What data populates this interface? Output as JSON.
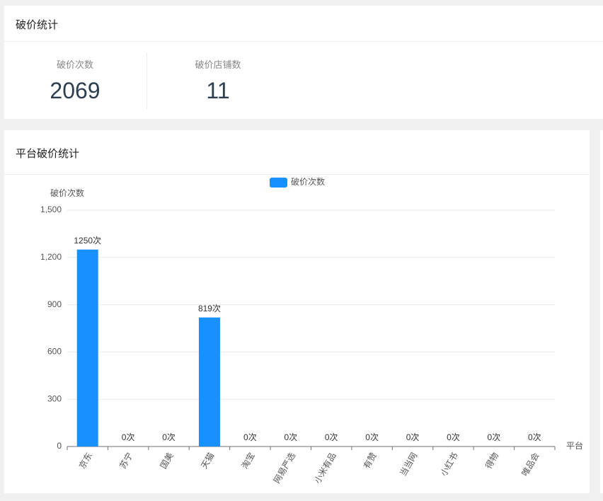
{
  "header": {
    "title": "破价统计"
  },
  "stats": [
    {
      "label": "破价次数",
      "value": "2069"
    },
    {
      "label": "破价店铺数",
      "value": "11"
    }
  ],
  "chart_data": {
    "type": "bar",
    "title": "平台破价统计",
    "categories": [
      "京东",
      "苏宁",
      "国美",
      "天猫",
      "淘宝",
      "网易严选",
      "小米有品",
      "有赞",
      "当当网",
      "小红书",
      "得物",
      "唯品会"
    ],
    "series": [
      {
        "name": "破价次数",
        "color": "#1890ff",
        "values": [
          1250,
          0,
          0,
          819,
          0,
          0,
          0,
          0,
          0,
          0,
          0,
          0
        ],
        "value_labels": [
          "1250次",
          "0次",
          "0次",
          "819次",
          "0次",
          "0次",
          "0次",
          "0次",
          "0次",
          "0次",
          "0次",
          "0次"
        ]
      }
    ],
    "y_label": "破价次数",
    "x_label": "平台",
    "ylim": [
      0,
      1500
    ],
    "yticks": [
      0,
      300,
      600,
      900,
      {
        "value": 1200,
        "label": "1,200"
      },
      {
        "value": 1500,
        "label": "1,500"
      }
    ],
    "grid": true,
    "legend": "top"
  }
}
